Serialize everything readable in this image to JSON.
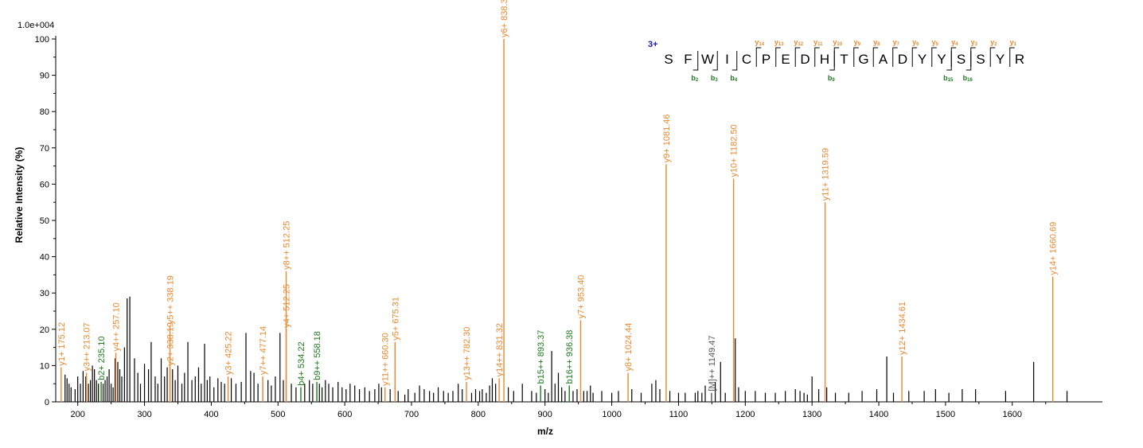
{
  "chart_data": {
    "type": "bar",
    "title": "",
    "scale_label": "1.0e+004",
    "xlabel": "m/z",
    "ylabel": "Relative   Intensity (%)",
    "xlim": [
      167,
      1735
    ],
    "ylim": [
      0,
      100
    ],
    "x_ticks": [
      200,
      300,
      400,
      500,
      600,
      700,
      800,
      900,
      1000,
      1100,
      1200,
      1300,
      1400,
      1500,
      1600
    ],
    "y_ticks": [
      0,
      10,
      20,
      30,
      40,
      50,
      60,
      70,
      80,
      90,
      100
    ],
    "grid": false,
    "colors": {
      "y_ion": "#e8892f",
      "b_ion": "#1f7a1f",
      "other": "#555555",
      "background_peak": "#000000",
      "charge": "#1a1aa0"
    },
    "labeled_peaks": [
      {
        "mz": 175.12,
        "intensity": 9.5,
        "label": "y1+ 175.12",
        "ion": "y"
      },
      {
        "mz": 213.07,
        "intensity": 8.0,
        "label": "y3++ 213.07",
        "ion": "y"
      },
      {
        "mz": 235.1,
        "intensity": 5.5,
        "label": "b2+ 235.10",
        "ion": "b"
      },
      {
        "mz": 257.1,
        "intensity": 13.5,
        "label": "y4++ 257.10",
        "ion": "y"
      },
      {
        "mz": 338.19,
        "intensity": 9.5,
        "label": "y2+ 338.19",
        "ion": "y"
      },
      {
        "mz": 338.19,
        "intensity": 21.0,
        "label": "y5++ 338.19",
        "ion": "y"
      },
      {
        "mz": 425.22,
        "intensity": 7.0,
        "label": "y3+ 425.22",
        "ion": "y"
      },
      {
        "mz": 477.14,
        "intensity": 7.0,
        "label": "y7++ 477.14",
        "ion": "y"
      },
      {
        "mz": 512.25,
        "intensity": 20.0,
        "label": "y4+ 512.25",
        "ion": "y"
      },
      {
        "mz": 512.25,
        "intensity": 36.0,
        "label": "y8++ 512.25",
        "ion": "y"
      },
      {
        "mz": 534.22,
        "intensity": 4.0,
        "label": "b4+ 534.22",
        "ion": "b"
      },
      {
        "mz": 558.18,
        "intensity": 5.5,
        "label": "b9++ 558.18",
        "ion": "b"
      },
      {
        "mz": 660.3,
        "intensity": 4.0,
        "label": "y11++ 660.30",
        "ion": "y"
      },
      {
        "mz": 675.31,
        "intensity": 16.5,
        "label": "y5+ 675.31",
        "ion": "y"
      },
      {
        "mz": 782.3,
        "intensity": 5.5,
        "label": "y13++ 782.30",
        "ion": "y"
      },
      {
        "mz": 831.32,
        "intensity": 6.5,
        "label": "y14++ 831.32",
        "ion": "y"
      },
      {
        "mz": 838.38,
        "intensity": 100,
        "label": "y6+ 838.38",
        "ion": "y"
      },
      {
        "mz": 893.37,
        "intensity": 4.5,
        "label": "b15++ 893.37",
        "ion": "b"
      },
      {
        "mz": 936.38,
        "intensity": 4.5,
        "label": "b16++ 936.38",
        "ion": "b"
      },
      {
        "mz": 953.4,
        "intensity": 22.5,
        "label": "y7+ 953.40",
        "ion": "y"
      },
      {
        "mz": 1024.44,
        "intensity": 8.0,
        "label": "y8+ 1024.44",
        "ion": "y"
      },
      {
        "mz": 1081.46,
        "intensity": 65.5,
        "label": "y9+ 1081.46",
        "ion": "y"
      },
      {
        "mz": 1149.47,
        "intensity": 2.5,
        "label": "[M]++ 1149.47",
        "ion": "other"
      },
      {
        "mz": 1182.5,
        "intensity": 61.5,
        "label": "y10+ 1182.50",
        "ion": "y"
      },
      {
        "mz": 1319.59,
        "intensity": 55.0,
        "label": "y11+ 1319.59",
        "ion": "y"
      },
      {
        "mz": 1434.61,
        "intensity": 12.5,
        "label": "y12+ 1434.61",
        "ion": "y"
      },
      {
        "mz": 1660.69,
        "intensity": 34.5,
        "label": "y14+ 1660.69",
        "ion": "y"
      }
    ],
    "background_peaks": [
      [
        181,
        7.5
      ],
      [
        184,
        6.5
      ],
      [
        187,
        5
      ],
      [
        190,
        4
      ],
      [
        196,
        3.5
      ],
      [
        200,
        7
      ],
      [
        204,
        5
      ],
      [
        208,
        8.5
      ],
      [
        212,
        7
      ],
      [
        216,
        5
      ],
      [
        219,
        6
      ],
      [
        222,
        10
      ],
      [
        225,
        9
      ],
      [
        228,
        6
      ],
      [
        231,
        5
      ],
      [
        238,
        5
      ],
      [
        241,
        6
      ],
      [
        244,
        7
      ],
      [
        247,
        9
      ],
      [
        250,
        5
      ],
      [
        253,
        4
      ],
      [
        256,
        12
      ],
      [
        260,
        11
      ],
      [
        263,
        9
      ],
      [
        266,
        7
      ],
      [
        270,
        15
      ],
      [
        274,
        28.5
      ],
      [
        278,
        29
      ],
      [
        285,
        12
      ],
      [
        290,
        8
      ],
      [
        294,
        5
      ],
      [
        300,
        10.5
      ],
      [
        306,
        9
      ],
      [
        310,
        16.5
      ],
      [
        316,
        7
      ],
      [
        320,
        5
      ],
      [
        325,
        12
      ],
      [
        330,
        7
      ],
      [
        334,
        9.5
      ],
      [
        342,
        9
      ],
      [
        346,
        6
      ],
      [
        350,
        10
      ],
      [
        356,
        5
      ],
      [
        360,
        8
      ],
      [
        365,
        16.5
      ],
      [
        371,
        6
      ],
      [
        376,
        7
      ],
      [
        381,
        9.5
      ],
      [
        385,
        5
      ],
      [
        390,
        16
      ],
      [
        394,
        6
      ],
      [
        398,
        7
      ],
      [
        404,
        4
      ],
      [
        410,
        6.5
      ],
      [
        415,
        5.5
      ],
      [
        420,
        5
      ],
      [
        430,
        6.5
      ],
      [
        437,
        5
      ],
      [
        445,
        5.5
      ],
      [
        452,
        19
      ],
      [
        459,
        8.5
      ],
      [
        464,
        8
      ],
      [
        470,
        5
      ],
      [
        485,
        6
      ],
      [
        490,
        4.5
      ],
      [
        496,
        7
      ],
      [
        503,
        19
      ],
      [
        508,
        6
      ],
      [
        520,
        5
      ],
      [
        527,
        4
      ],
      [
        540,
        5
      ],
      [
        547,
        6
      ],
      [
        552,
        5
      ],
      [
        562,
        5
      ],
      [
        566,
        4
      ],
      [
        571,
        6
      ],
      [
        576,
        5
      ],
      [
        582,
        4
      ],
      [
        590,
        5.5
      ],
      [
        596,
        4
      ],
      [
        602,
        3.5
      ],
      [
        608,
        5
      ],
      [
        615,
        4.5
      ],
      [
        622,
        3.5
      ],
      [
        630,
        4
      ],
      [
        637,
        3
      ],
      [
        645,
        3.5
      ],
      [
        651,
        5
      ],
      [
        655,
        4
      ],
      [
        668,
        3.5
      ],
      [
        680,
        3
      ],
      [
        690,
        2
      ],
      [
        695,
        3.5
      ],
      [
        705,
        2.5
      ],
      [
        712,
        4.5
      ],
      [
        719,
        3.5
      ],
      [
        727,
        3
      ],
      [
        733,
        2.5
      ],
      [
        740,
        4
      ],
      [
        748,
        3
      ],
      [
        755,
        2.5
      ],
      [
        762,
        3
      ],
      [
        770,
        5
      ],
      [
        776,
        3.5
      ],
      [
        790,
        2.5
      ],
      [
        796,
        3.5
      ],
      [
        802,
        3
      ],
      [
        806,
        3.5
      ],
      [
        812,
        2.5
      ],
      [
        817,
        4.5
      ],
      [
        821,
        6.5
      ],
      [
        826,
        5
      ],
      [
        845,
        4
      ],
      [
        853,
        3
      ],
      [
        866,
        5
      ],
      [
        880,
        3
      ],
      [
        887,
        2.5
      ],
      [
        900,
        3.5
      ],
      [
        905,
        2.5
      ],
      [
        910,
        14
      ],
      [
        915,
        5
      ],
      [
        920,
        8
      ],
      [
        925,
        4
      ],
      [
        930,
        3
      ],
      [
        942,
        3
      ],
      [
        948,
        3.5
      ],
      [
        958,
        3
      ],
      [
        963,
        3
      ],
      [
        968,
        4.5
      ],
      [
        972,
        2.5
      ],
      [
        985,
        3
      ],
      [
        1000,
        2.5
      ],
      [
        1010,
        3
      ],
      [
        1030,
        3.5
      ],
      [
        1044,
        2.5
      ],
      [
        1060,
        5
      ],
      [
        1066,
        6
      ],
      [
        1072,
        3.5
      ],
      [
        1087,
        3
      ],
      [
        1100,
        2.5
      ],
      [
        1110,
        2.5
      ],
      [
        1125,
        2.5
      ],
      [
        1129,
        3
      ],
      [
        1135,
        2.5
      ],
      [
        1140,
        4.5
      ],
      [
        1155,
        5.5
      ],
      [
        1163,
        11
      ],
      [
        1170,
        2.5
      ],
      [
        1185,
        17.5
      ],
      [
        1190,
        4
      ],
      [
        1200,
        3
      ],
      [
        1215,
        3
      ],
      [
        1230,
        2.5
      ],
      [
        1245,
        2.5
      ],
      [
        1260,
        3
      ],
      [
        1275,
        3.5
      ],
      [
        1282,
        3
      ],
      [
        1288,
        2.5
      ],
      [
        1293,
        2
      ],
      [
        1300,
        7
      ],
      [
        1310,
        3.5
      ],
      [
        1322,
        4
      ],
      [
        1335,
        2.5
      ],
      [
        1355,
        2.5
      ],
      [
        1375,
        3
      ],
      [
        1397,
        3.5
      ],
      [
        1412,
        12.5
      ],
      [
        1422,
        2.5
      ],
      [
        1445,
        3
      ],
      [
        1468,
        3
      ],
      [
        1485,
        3.5
      ],
      [
        1505,
        2.5
      ],
      [
        1525,
        3.5
      ],
      [
        1545,
        3.5
      ],
      [
        1590,
        3
      ],
      [
        1632,
        11
      ],
      [
        1682,
        3
      ]
    ],
    "sequence": {
      "charge": "3+",
      "residues": [
        "S",
        "F",
        "W",
        "I",
        "C",
        "P",
        "E",
        "D",
        "H",
        "T",
        "G",
        "A",
        "D",
        "Y",
        "Y",
        "S",
        "S",
        "Y",
        "R"
      ],
      "y_ions": [
        {
          "after": 5,
          "label": "y",
          "sub": "14"
        },
        {
          "after": 6,
          "label": "y",
          "sub": "13"
        },
        {
          "after": 7,
          "label": "y",
          "sub": "12"
        },
        {
          "after": 8,
          "label": "y",
          "sub": "11"
        },
        {
          "after": 9,
          "label": "y",
          "sub": "10"
        },
        {
          "after": 10,
          "label": "y",
          "sub": "9"
        },
        {
          "after": 11,
          "label": "y",
          "sub": "8"
        },
        {
          "after": 12,
          "label": "y",
          "sub": "7"
        },
        {
          "after": 13,
          "label": "y",
          "sub": "6"
        },
        {
          "after": 14,
          "label": "y",
          "sub": "5"
        },
        {
          "after": 15,
          "label": "y",
          "sub": "4"
        },
        {
          "after": 16,
          "label": "y",
          "sub": "3"
        },
        {
          "after": 17,
          "label": "y",
          "sub": "2"
        },
        {
          "after": 18,
          "label": "y",
          "sub": "1"
        }
      ],
      "b_ions": [
        {
          "after": 2,
          "label": "b",
          "sub": "2"
        },
        {
          "after": 3,
          "label": "b",
          "sub": "3"
        },
        {
          "after": 4,
          "label": "b",
          "sub": "4"
        },
        {
          "after": 9,
          "label": "b",
          "sub": "9"
        },
        {
          "after": 15,
          "label": "b",
          "sub": "15"
        },
        {
          "after": 16,
          "label": "b",
          "sub": "16"
        }
      ]
    }
  }
}
